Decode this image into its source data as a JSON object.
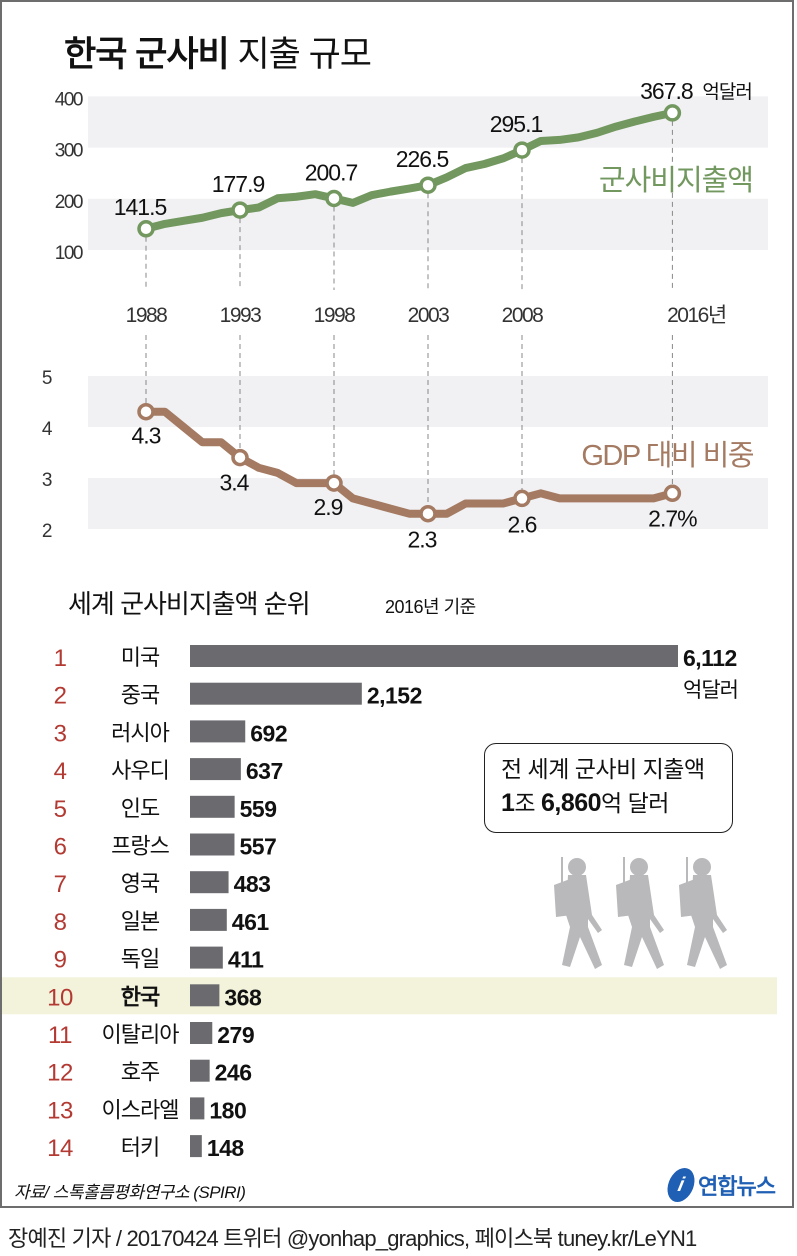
{
  "title": {
    "bold": "한국 군사비",
    "regular": "지출 규모"
  },
  "colors": {
    "spending": "#72985f",
    "gdp": "#a47a62",
    "bar": "#6b6b6f",
    "rank": "#b33a32",
    "highlight": "#f3f3dc",
    "band": "#f1f1f3",
    "logo": "#1f5fb4"
  },
  "chart_data": [
    {
      "type": "line",
      "series": [
        {
          "name": "군사비지출액",
          "color": "#72985f"
        }
      ],
      "x": [
        1988,
        1989,
        1990,
        1991,
        1992,
        1993,
        1994,
        1995,
        1996,
        1997,
        1998,
        1999,
        2000,
        2001,
        2002,
        2003,
        2004,
        2005,
        2006,
        2007,
        2008,
        2009,
        2010,
        2011,
        2012,
        2013,
        2014,
        2015,
        2016
      ],
      "values": [
        141.5,
        151,
        157,
        163,
        172,
        177.9,
        183,
        201,
        204,
        209,
        200.7,
        192,
        207,
        214,
        220,
        226.5,
        242,
        260,
        268,
        279,
        295.1,
        313,
        315,
        320,
        329,
        341,
        351,
        360,
        367.8
      ],
      "labeled_points": [
        {
          "x": 1988,
          "label": "141.5"
        },
        {
          "x": 1993,
          "label": "177.9"
        },
        {
          "x": 1998,
          "label": "200.7"
        },
        {
          "x": 2003,
          "label": "226.5"
        },
        {
          "x": 2008,
          "label": "295.1"
        },
        {
          "x": 2016,
          "label": "367.8",
          "unit": "억달러"
        }
      ],
      "yticks": [
        "100",
        "200",
        "300",
        "400"
      ],
      "ylim": [
        100,
        400
      ],
      "xtick_labels": [
        "1988",
        "1993",
        "1998",
        "2003",
        "2008",
        "2016년"
      ],
      "grid": "alternating bands"
    },
    {
      "type": "line",
      "series": [
        {
          "name": "GDP 대비 비중",
          "color": "#a47a62"
        }
      ],
      "x": [
        1988,
        1989,
        1990,
        1991,
        1992,
        1993,
        1994,
        1995,
        1996,
        1997,
        1998,
        1999,
        2000,
        2001,
        2002,
        2003,
        2004,
        2005,
        2006,
        2007,
        2008,
        2009,
        2010,
        2011,
        2012,
        2013,
        2014,
        2015,
        2016
      ],
      "values": [
        4.3,
        4.3,
        4.0,
        3.7,
        3.7,
        3.4,
        3.2,
        3.1,
        2.9,
        2.9,
        2.9,
        2.6,
        2.5,
        2.4,
        2.3,
        2.3,
        2.3,
        2.5,
        2.5,
        2.5,
        2.6,
        2.7,
        2.6,
        2.6,
        2.6,
        2.6,
        2.6,
        2.6,
        2.7
      ],
      "labeled_points": [
        {
          "x": 1988,
          "label": "4.3"
        },
        {
          "x": 1993,
          "label": "3.4"
        },
        {
          "x": 1998,
          "label": "2.9"
        },
        {
          "x": 2003,
          "label": "2.3"
        },
        {
          "x": 2008,
          "label": "2.6"
        },
        {
          "x": 2016,
          "label": "2.7%"
        }
      ],
      "yticks": [
        "2",
        "3",
        "4",
        "5"
      ],
      "ylim": [
        2,
        5
      ],
      "grid": "alternating bands"
    },
    {
      "type": "bar",
      "title": "세계 군사비지출액 순위",
      "subtitle": "2016년 기준",
      "unit": "억달러",
      "ranks": [
        "1",
        "2",
        "3",
        "4",
        "5",
        "6",
        "7",
        "8",
        "9",
        "10",
        "11",
        "12",
        "13",
        "14"
      ],
      "categories": [
        "미국",
        "중국",
        "러시아",
        "사우디",
        "인도",
        "프랑스",
        "영국",
        "일본",
        "독일",
        "한국",
        "이탈리아",
        "호주",
        "이스라엘",
        "터키"
      ],
      "values": [
        6112,
        2152,
        692,
        637,
        559,
        557,
        483,
        461,
        411,
        368,
        279,
        246,
        180,
        148
      ],
      "value_labels": [
        "6,112",
        "2,152",
        "692",
        "637",
        "559",
        "557",
        "483",
        "461",
        "411",
        "368",
        "279",
        "246",
        "180",
        "148"
      ],
      "highlighted": "한국",
      "xlim": [
        0,
        6112
      ]
    }
  ],
  "total_box": {
    "line1": "전 세계 군사비 지출액",
    "num1": "1",
    "unit1": "조",
    "num2": "6,860",
    "unit2": "억 달러"
  },
  "source": "자료/ 스톡홀름평화연구소 (SPIRI)",
  "logo": {
    "text": "연합뉴스"
  },
  "footer": "장예진 기자 / 20170424 트위터 @yonhap_graphics, 페이스북 tuney.kr/LeYN1"
}
